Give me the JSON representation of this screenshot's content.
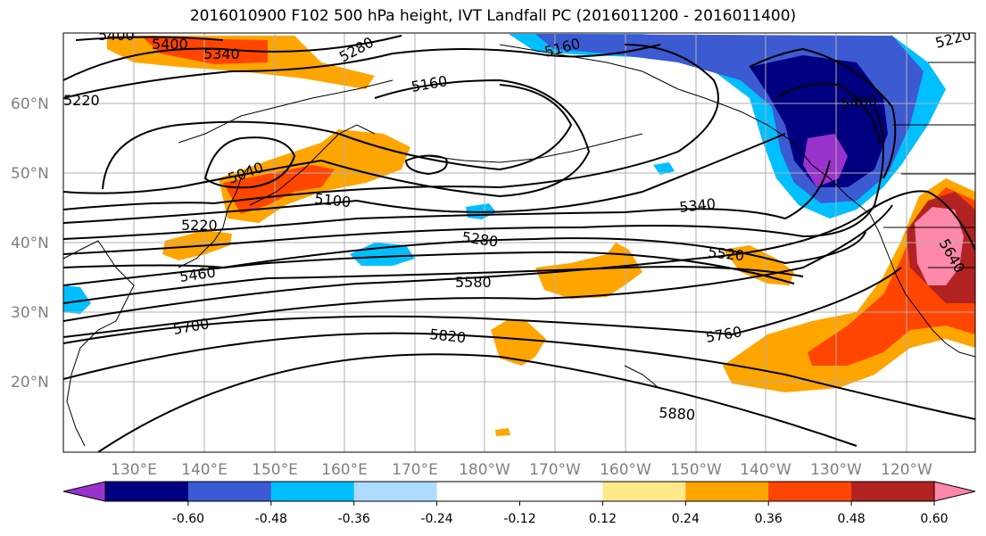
{
  "title": "2016010900 F102 500 hPa height, IVT Landfall PC (2016011200 - 2016011400)",
  "map": {
    "lat_labels": [
      "60°N",
      "50°N",
      "40°N",
      "30°N",
      "20°N"
    ],
    "lon_labels": [
      "130°E",
      "140°E",
      "150°E",
      "160°E",
      "170°E",
      "180°W",
      "170°W",
      "160°W",
      "150°W",
      "140°W",
      "130°W",
      "120°W"
    ],
    "contour_labels": [
      "5400",
      "5340",
      "5280",
      "5160",
      "5220",
      "5040",
      "5100",
      "5220",
      "5460",
      "5280",
      "5580",
      "5700",
      "5820",
      "5340",
      "5520",
      "5400",
      "5640",
      "5760",
      "5880",
      "5160",
      "5220"
    ]
  },
  "colorbar": {
    "colors": [
      "#9933cc",
      "#000080",
      "#3c5ad2",
      "#00bfff",
      "#aedcff",
      "#ffffff",
      "#ffffff",
      "#ffe98a",
      "#ffa500",
      "#ff4500",
      "#b22222",
      "#ff88aa"
    ],
    "tick_labels": [
      "-0.60",
      "-0.48",
      "-0.36",
      "-0.24",
      "-0.12",
      "0.12",
      "0.24",
      "0.36",
      "0.48",
      "0.60"
    ]
  }
}
